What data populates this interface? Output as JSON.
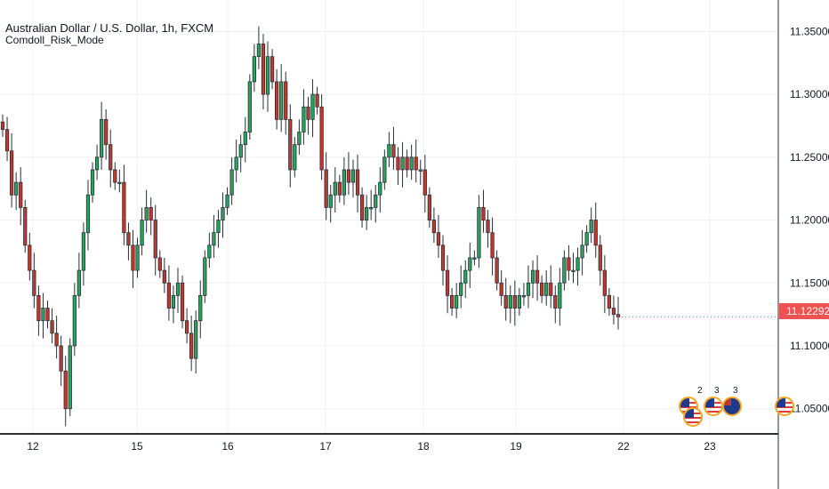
{
  "header": {
    "symbol_title": "Australian Dollar / U.S. Dollar, 1h, FXCM",
    "indicator_name": "Comdoll_Risk_Mode"
  },
  "current_price": "11.12292",
  "colors": {
    "up": "#26a65b",
    "down": "#c0392b",
    "wick": "#2a2e39",
    "grid": "#eef0f3",
    "price_tag": "#ef5350"
  },
  "events": [
    {
      "icon": "us-flag-icon",
      "count": "2"
    },
    {
      "icon": "us-flag-icon",
      "count": "3"
    },
    {
      "icon": "au-flag-icon",
      "count": "3"
    },
    {
      "icon": "us-flag-icon",
      "count": ""
    }
  ],
  "chart_data": {
    "type": "candlestick",
    "ylim": [
      11.03,
      11.375
    ],
    "yticks": [
      "11.05000",
      "11.10000",
      "11.15000",
      "11.20000",
      "11.25000",
      "11.30000",
      "11.35000"
    ],
    "xticks": [
      "12",
      "15",
      "16",
      "17",
      "18",
      "19",
      "22",
      "23"
    ],
    "grid": true,
    "closes": [
      11.272,
      11.255,
      11.22,
      11.23,
      11.21,
      11.18,
      11.16,
      11.14,
      11.12,
      11.13,
      11.12,
      11.11,
      11.1,
      11.08,
      11.05,
      11.1,
      11.14,
      11.16,
      11.19,
      11.22,
      11.24,
      11.25,
      11.28,
      11.26,
      11.24,
      11.23,
      11.23,
      11.19,
      11.18,
      11.16,
      11.18,
      11.2,
      11.21,
      11.2,
      11.17,
      11.16,
      11.15,
      11.13,
      11.14,
      11.15,
      11.12,
      11.11,
      11.09,
      11.12,
      11.14,
      11.17,
      11.18,
      11.19,
      11.2,
      11.21,
      11.22,
      11.24,
      11.25,
      11.26,
      11.27,
      11.31,
      11.33,
      11.34,
      11.3,
      11.33,
      11.31,
      11.28,
      11.31,
      11.28,
      11.24,
      11.26,
      11.27,
      11.29,
      11.28,
      11.3,
      11.29,
      11.24,
      11.21,
      11.22,
      11.23,
      11.22,
      11.24,
      11.23,
      11.24,
      11.22,
      11.2,
      11.21,
      11.21,
      11.22,
      11.23,
      11.25,
      11.26,
      11.25,
      11.24,
      11.25,
      11.24,
      11.25,
      11.24,
      11.24,
      11.22,
      11.2,
      11.19,
      11.18,
      11.16,
      11.14,
      11.13,
      11.14,
      11.15,
      11.16,
      11.17,
      11.17,
      11.21,
      11.2,
      11.19,
      11.17,
      11.15,
      11.14,
      11.13,
      11.14,
      11.13,
      11.14,
      11.14,
      11.15,
      11.16,
      11.15,
      11.14,
      11.15,
      11.14,
      11.13,
      11.15,
      11.17,
      11.16,
      11.16,
      11.17,
      11.18,
      11.19,
      11.2,
      11.18,
      11.16,
      11.14,
      11.13,
      11.125,
      11.123
    ]
  }
}
